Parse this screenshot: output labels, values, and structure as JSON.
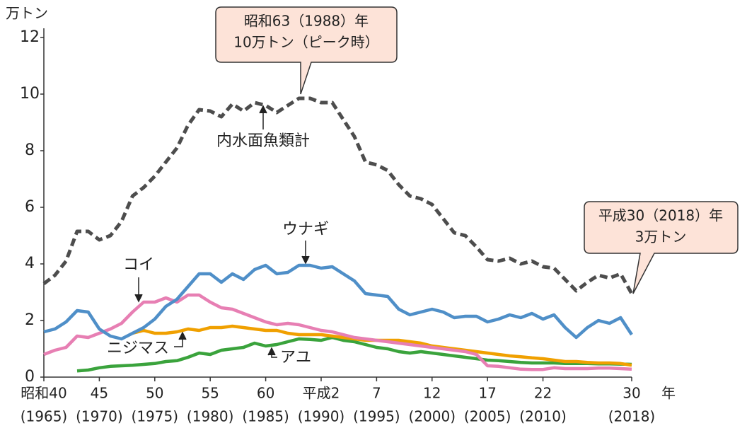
{
  "chart_data": {
    "type": "line",
    "y_axis_label": "万トン",
    "x_axis_label": "年",
    "x": [
      1965,
      1966,
      1967,
      1968,
      1969,
      1970,
      1971,
      1972,
      1973,
      1974,
      1975,
      1976,
      1977,
      1978,
      1979,
      1980,
      1981,
      1982,
      1983,
      1984,
      1985,
      1986,
      1987,
      1988,
      1989,
      1990,
      1991,
      1992,
      1993,
      1994,
      1995,
      1996,
      1997,
      1998,
      1999,
      2000,
      2001,
      2002,
      2003,
      2004,
      2005,
      2006,
      2007,
      2008,
      2009,
      2010,
      2011,
      2012,
      2013,
      2014,
      2015,
      2016,
      2017,
      2018
    ],
    "xlim": [
      1965,
      2018
    ],
    "xticks": [
      {
        "value": 1965,
        "label": "昭和40"
      },
      {
        "value": 1970,
        "label": "45"
      },
      {
        "value": 1975,
        "label": "50"
      },
      {
        "value": 1980,
        "label": "55"
      },
      {
        "value": 1985,
        "label": "60"
      },
      {
        "value": 1990,
        "label": "平成2"
      },
      {
        "value": 1995,
        "label": "7"
      },
      {
        "value": 2000,
        "label": "12"
      },
      {
        "value": 2005,
        "label": "17"
      },
      {
        "value": 2010,
        "label": "22"
      },
      {
        "value": 2018,
        "label": "30"
      }
    ],
    "xtick_sublabels": [
      "(1965)",
      "(1970)",
      "(1975)",
      "(1980)",
      "(1985)",
      "(1990)",
      "(1995)",
      "(2000)",
      "(2005)",
      "(2010)",
      "(2018)"
    ],
    "ylim": [
      0,
      12
    ],
    "yticks": [
      0,
      2,
      4,
      6,
      8,
      10,
      12
    ],
    "series": [
      {
        "name": "内水面魚類計",
        "color": "#4d4d4d",
        "line_style": "dashed",
        "values": [
          3.3,
          3.6,
          4.1,
          5.15,
          5.15,
          4.85,
          5.0,
          5.5,
          6.4,
          6.7,
          7.1,
          7.6,
          8.1,
          8.9,
          9.45,
          9.4,
          9.2,
          9.65,
          9.4,
          9.7,
          9.6,
          9.35,
          9.6,
          9.85,
          9.85,
          9.7,
          9.7,
          9.1,
          8.5,
          7.6,
          7.5,
          7.3,
          6.8,
          6.4,
          6.3,
          6.1,
          5.6,
          5.1,
          5.0,
          4.6,
          4.15,
          4.1,
          4.2,
          4.0,
          4.1,
          3.9,
          3.85,
          3.45,
          3.05,
          3.35,
          3.6,
          3.5,
          3.65,
          2.95
        ]
      },
      {
        "name": "ウナギ",
        "color": "#4f8fc8",
        "line_style": "solid",
        "values": [
          1.6,
          1.7,
          1.95,
          2.35,
          2.3,
          1.7,
          1.45,
          1.35,
          1.55,
          1.75,
          2.05,
          2.5,
          2.75,
          3.2,
          3.65,
          3.65,
          3.35,
          3.65,
          3.45,
          3.8,
          3.95,
          3.65,
          3.7,
          3.95,
          3.95,
          3.85,
          3.9,
          3.65,
          3.4,
          2.95,
          2.9,
          2.85,
          2.4,
          2.2,
          2.3,
          2.4,
          2.3,
          2.1,
          2.15,
          2.15,
          1.95,
          2.05,
          2.2,
          2.1,
          2.25,
          2.05,
          2.2,
          1.75,
          1.4,
          1.75,
          2.0,
          1.9,
          2.1,
          1.5
        ]
      },
      {
        "name": "コイ",
        "color": "#e77fb3",
        "line_style": "solid",
        "values": [
          0.8,
          0.95,
          1.05,
          1.45,
          1.4,
          1.55,
          1.7,
          1.9,
          2.3,
          2.65,
          2.65,
          2.8,
          2.65,
          2.9,
          2.9,
          2.65,
          2.45,
          2.4,
          2.25,
          2.1,
          1.95,
          1.85,
          1.9,
          1.85,
          1.75,
          1.65,
          1.6,
          1.5,
          1.4,
          1.35,
          1.3,
          1.25,
          1.2,
          1.15,
          1.1,
          1.05,
          1.0,
          0.95,
          0.9,
          0.8,
          0.4,
          0.38,
          0.33,
          0.28,
          0.27,
          0.27,
          0.33,
          0.3,
          0.3,
          0.3,
          0.32,
          0.32,
          0.3,
          0.28
        ]
      },
      {
        "name": "ニジマス",
        "color": "#f0a000",
        "line_style": "solid",
        "values": [
          null,
          null,
          null,
          null,
          null,
          null,
          null,
          null,
          1.55,
          1.65,
          1.55,
          1.55,
          1.6,
          1.7,
          1.65,
          1.75,
          1.75,
          1.8,
          1.75,
          1.7,
          1.65,
          1.65,
          1.55,
          1.5,
          1.5,
          1.5,
          1.45,
          1.4,
          1.35,
          1.3,
          1.3,
          1.3,
          1.3,
          1.25,
          1.2,
          1.1,
          1.05,
          1.0,
          0.95,
          0.9,
          0.85,
          0.8,
          0.75,
          0.72,
          0.68,
          0.65,
          0.6,
          0.55,
          0.55,
          0.52,
          0.5,
          0.5,
          0.48,
          0.42
        ]
      },
      {
        "name": "アユ",
        "color": "#3aa33c",
        "line_style": "solid",
        "values": [
          null,
          null,
          null,
          0.22,
          0.25,
          0.33,
          0.38,
          0.4,
          0.42,
          0.45,
          0.48,
          0.55,
          0.58,
          0.7,
          0.85,
          0.8,
          0.95,
          1.0,
          1.05,
          1.2,
          1.1,
          1.15,
          1.25,
          1.35,
          1.33,
          1.3,
          1.4,
          1.3,
          1.25,
          1.15,
          1.05,
          1.0,
          0.9,
          0.85,
          0.9,
          0.85,
          0.8,
          0.75,
          0.7,
          0.65,
          0.6,
          0.58,
          0.55,
          0.52,
          0.5,
          0.5,
          0.5,
          0.48,
          0.48,
          0.48,
          0.47,
          0.47,
          0.46,
          0.45
        ]
      }
    ],
    "annotations": [
      {
        "lines": [
          "昭和63（1988）年",
          "10万トン（ピーク時）"
        ]
      },
      {
        "lines": [
          "平成30（2018）年",
          "3万トン"
        ]
      }
    ]
  }
}
